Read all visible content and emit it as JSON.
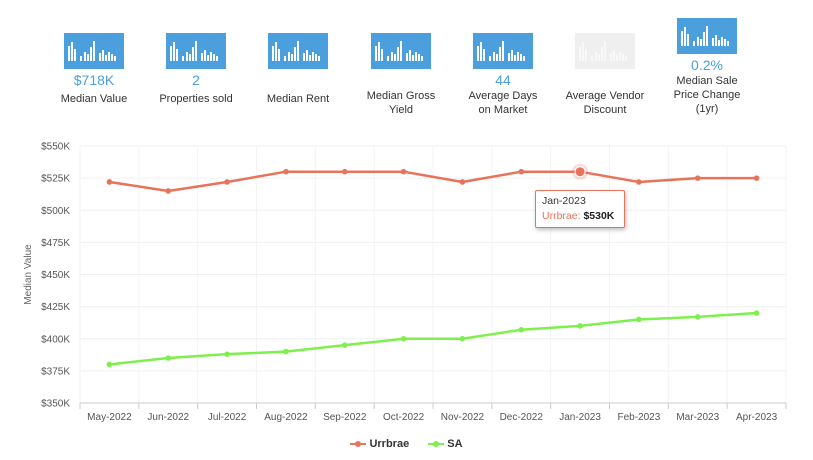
{
  "stats": [
    {
      "value": "$718K",
      "label_lines": [
        "Median Value"
      ],
      "icon": "bar-chart-icon",
      "faded": false
    },
    {
      "value": "2",
      "label_lines": [
        "Properties sold"
      ],
      "icon": "bar-chart-icon",
      "faded": false
    },
    {
      "value": "",
      "label_lines": [
        "Median Rent"
      ],
      "icon": "bar-chart-icon",
      "faded": false
    },
    {
      "value": "",
      "label_lines": [
        "Median Gross",
        "Yield"
      ],
      "icon": "bar-chart-icon",
      "faded": false
    },
    {
      "value": "44",
      "label_lines": [
        "Average Days",
        "on Market"
      ],
      "icon": "bar-chart-icon",
      "faded": false
    },
    {
      "value": "",
      "label_lines": [
        "Average Vendor",
        "Discount"
      ],
      "icon": "bar-chart-icon",
      "faded": true
    },
    {
      "value": "0.2%",
      "label_lines": [
        "Median Sale",
        "Price Change",
        "(1yr)"
      ],
      "icon": "bar-chart-icon",
      "faded": false
    }
  ],
  "tooltip": {
    "date": "Jan-2023",
    "series": "Urrbrae:",
    "value": "$530K"
  },
  "colors": {
    "accent": "#4a9fdc",
    "urrbrae": "#e8735a",
    "sa": "#7ef04e"
  },
  "chart_data": {
    "type": "line",
    "categories": [
      "May-2022",
      "Jun-2022",
      "Jul-2022",
      "Aug-2022",
      "Sep-2022",
      "Oct-2022",
      "Nov-2022",
      "Dec-2022",
      "Jan-2023",
      "Feb-2023",
      "Mar-2023",
      "Apr-2023"
    ],
    "series": [
      {
        "name": "Urrbrae",
        "color": "#e8735a",
        "values": [
          522,
          515,
          522,
          530,
          530,
          530,
          522,
          530,
          530,
          522,
          525,
          525
        ]
      },
      {
        "name": "SA",
        "color": "#7ef04e",
        "values": [
          380,
          385,
          388,
          390,
          395,
          400,
          400,
          407,
          410,
          415,
          417,
          420
        ]
      }
    ],
    "ylabel": "Median Value",
    "ylim": [
      350,
      550
    ],
    "yticks": [
      350,
      375,
      400,
      425,
      450,
      475,
      500,
      525,
      550
    ],
    "ytick_labels": [
      "$350K",
      "$375K",
      "$400K",
      "$425K",
      "$450K",
      "$475K",
      "$500K",
      "$525K",
      "$550K"
    ],
    "highlighted_index": 8,
    "legend_position": "bottom",
    "grid": true
  }
}
